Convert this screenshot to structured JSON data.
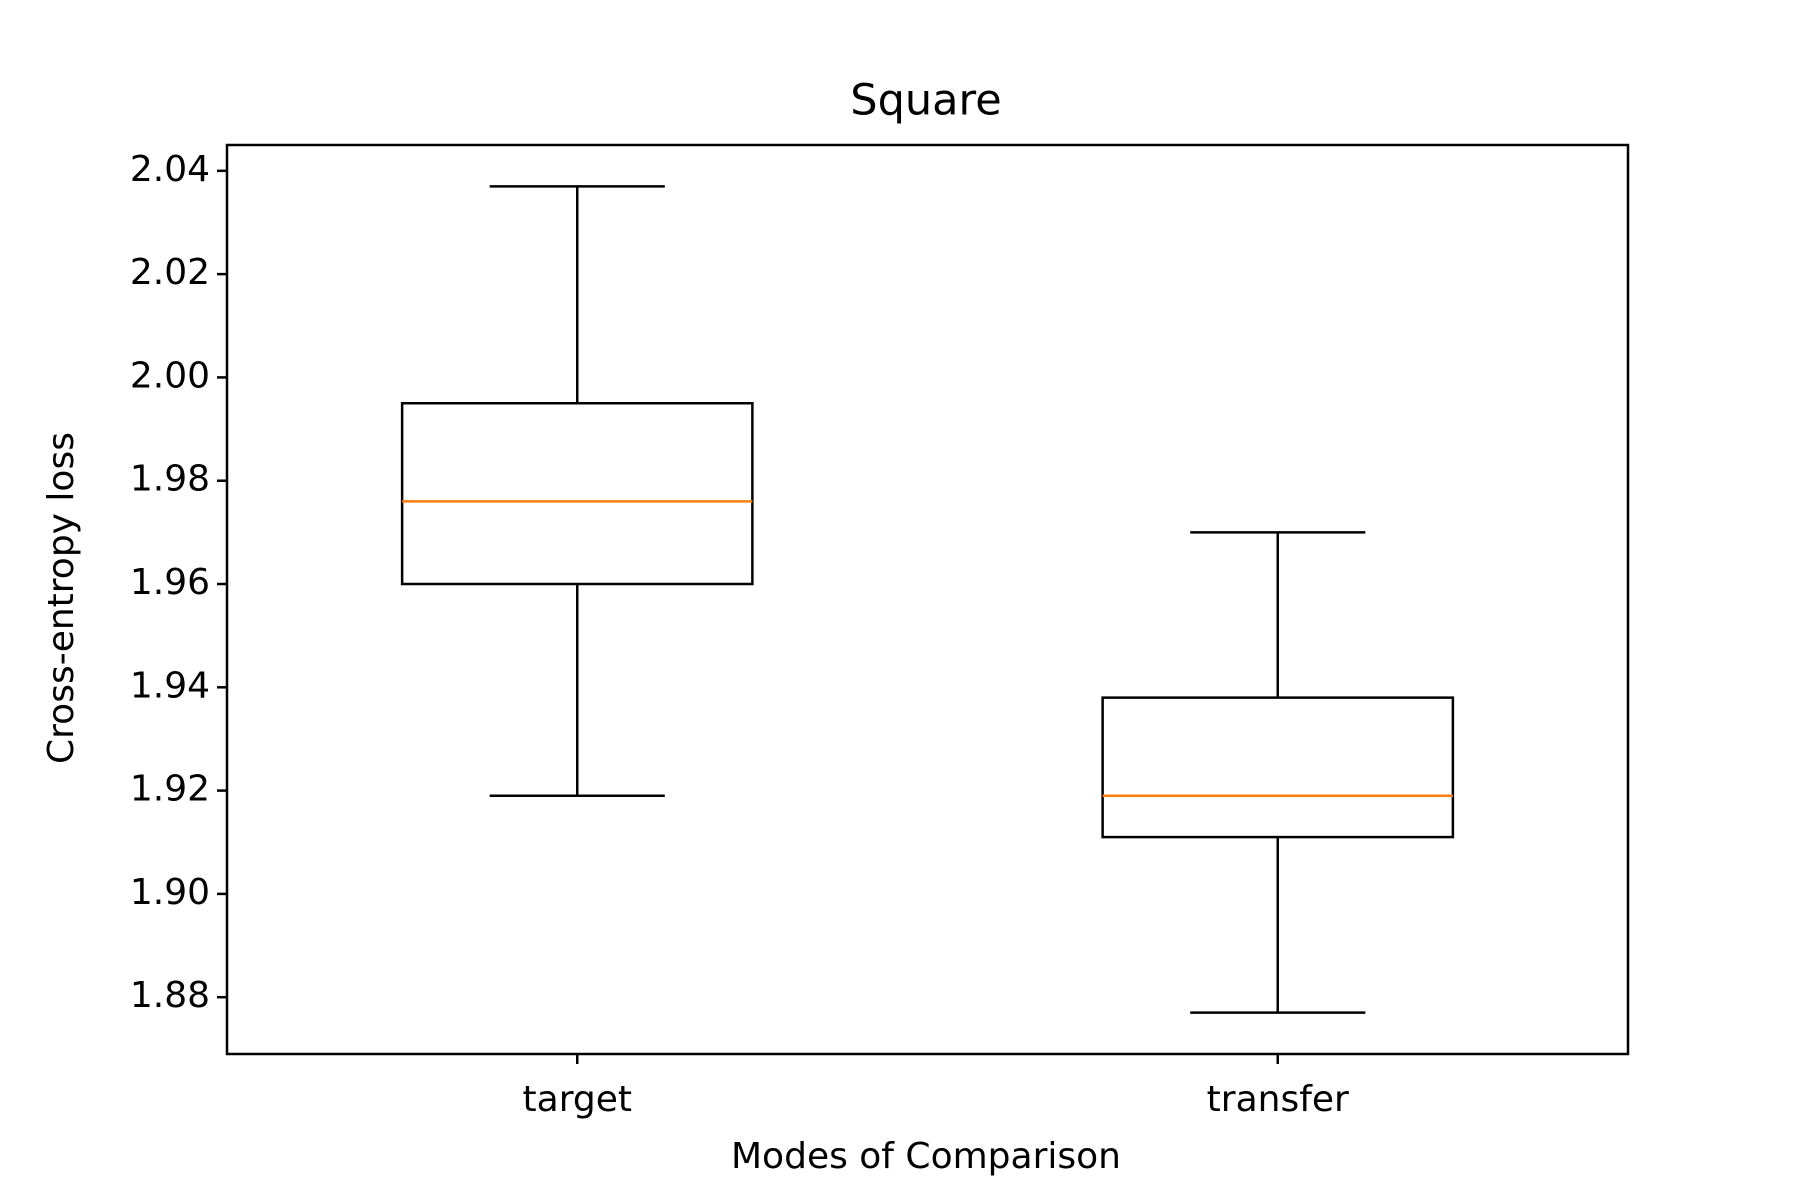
{
  "chart_data": {
    "type": "box",
    "title": "Square",
    "xlabel": "Modes of Comparison",
    "ylabel": "Cross-entropy loss",
    "ylim": [
      1.869,
      2.045
    ],
    "yticks": [
      "1.88",
      "1.90",
      "1.92",
      "1.94",
      "1.96",
      "1.98",
      "2.00",
      "2.02",
      "2.04"
    ],
    "categories": [
      "target",
      "transfer"
    ],
    "boxes": [
      {
        "category": "target",
        "whisker_low": 1.919,
        "q1": 1.96,
        "median": 1.976,
        "q3": 1.995,
        "whisker_high": 2.037
      },
      {
        "category": "transfer",
        "whisker_low": 1.877,
        "q1": 1.911,
        "median": 1.919,
        "q3": 1.938,
        "whisker_high": 1.97
      }
    ],
    "grid": false,
    "colors": {
      "box": "#000000",
      "median": "#ff7f0e"
    }
  }
}
